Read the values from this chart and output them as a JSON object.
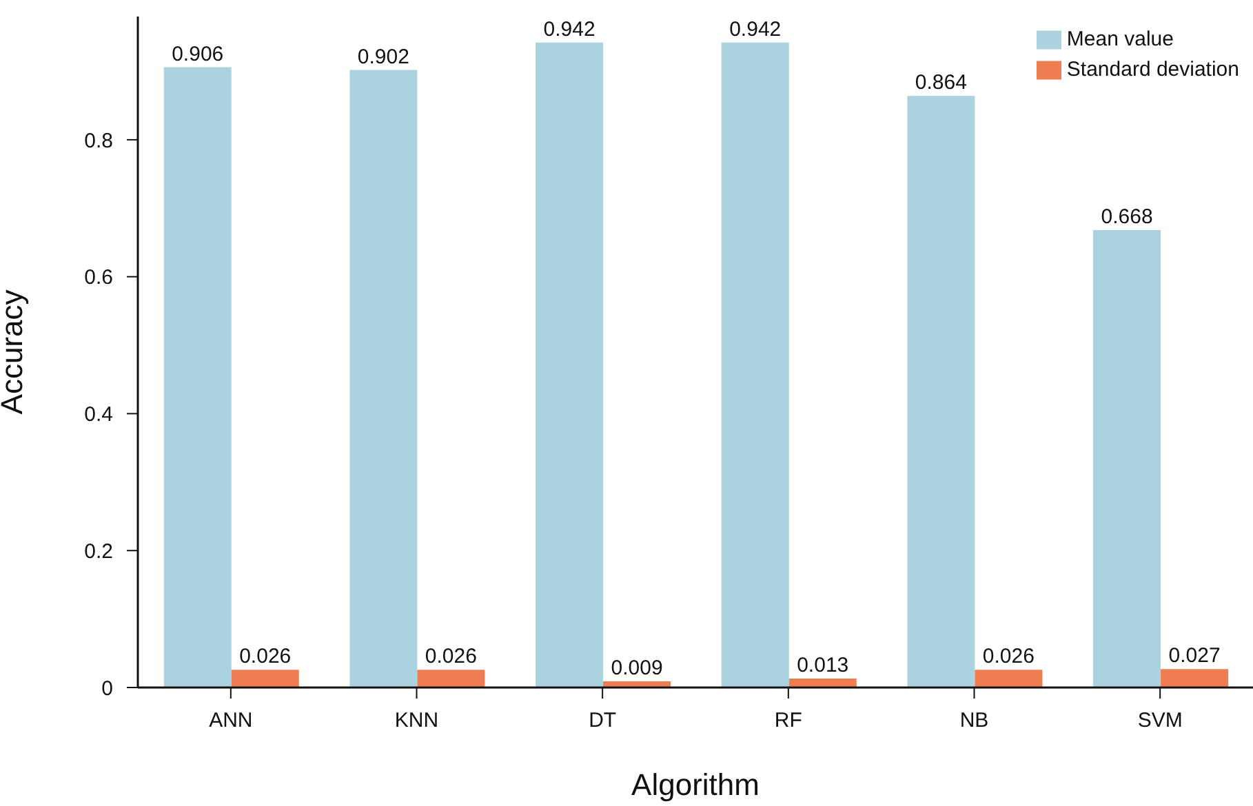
{
  "chart_data": {
    "type": "bar",
    "xlabel": "Algorithm",
    "ylabel": "Accuracy",
    "categories": [
      "ANN",
      "KNN",
      "DT",
      "RF",
      "NB",
      "SVM"
    ],
    "series": [
      {
        "name": "Mean value",
        "color": "#abd3df",
        "values": [
          0.906,
          0.902,
          0.942,
          0.942,
          0.864,
          0.668
        ]
      },
      {
        "name": "Standard deviation",
        "color": "#ee7d52",
        "values": [
          0.026,
          0.026,
          0.009,
          0.013,
          0.026,
          0.027
        ]
      }
    ],
    "ylim": [
      0,
      0.98
    ],
    "yticks": [
      0,
      0.2,
      0.4,
      0.6,
      0.8
    ],
    "data_labels": true,
    "grid": false,
    "legend": "top right"
  }
}
